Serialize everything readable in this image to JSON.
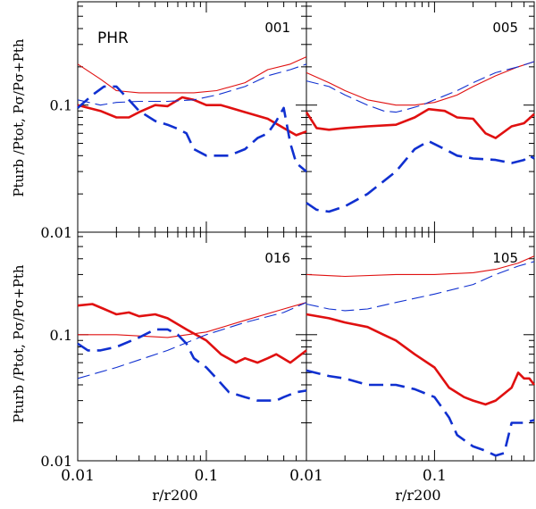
{
  "chart_data": {
    "type": "line",
    "x_scale": "log",
    "y_scale": "log",
    "xlim": [
      0.01,
      0.6
    ],
    "ylim": [
      0.01,
      0.65
    ],
    "x_tick_labels": [
      "0.01",
      "0.1"
    ],
    "y_tick_labels": [
      "0.01",
      "0.1"
    ],
    "xlabel": "r/r200",
    "ylabel": "Pturb /Ptot, Pσ/Pσ+Pth",
    "colors": {
      "red": "#e01010",
      "blue": "#1030d0"
    },
    "panels": [
      {
        "id": "001",
        "tag": "PHR",
        "series": [
          {
            "name": "red-thin",
            "style": "thin-solid",
            "color": "red",
            "x": [
              0.01,
              0.015,
              0.02,
              0.03,
              0.05,
              0.08,
              0.12,
              0.2,
              0.3,
              0.45,
              0.6
            ],
            "y": [
              0.21,
              0.16,
              0.13,
              0.125,
              0.125,
              0.125,
              0.13,
              0.15,
              0.19,
              0.21,
              0.24
            ]
          },
          {
            "name": "red-thick",
            "style": "thick-solid",
            "color": "red",
            "x": [
              0.01,
              0.015,
              0.02,
              0.025,
              0.03,
              0.04,
              0.05,
              0.065,
              0.08,
              0.1,
              0.13,
              0.2,
              0.3,
              0.4,
              0.5,
              0.6
            ],
            "y": [
              0.1,
              0.09,
              0.08,
              0.08,
              0.088,
              0.1,
              0.098,
              0.115,
              0.11,
              0.1,
              0.1,
              0.088,
              0.078,
              0.066,
              0.058,
              0.062
            ]
          },
          {
            "name": "blue-thin",
            "style": "thin-dash",
            "color": "blue",
            "x": [
              0.01,
              0.015,
              0.02,
              0.03,
              0.05,
              0.08,
              0.12,
              0.2,
              0.3,
              0.45,
              0.6
            ],
            "y": [
              0.11,
              0.1,
              0.105,
              0.107,
              0.107,
              0.11,
              0.12,
              0.14,
              0.17,
              0.19,
              0.21
            ]
          },
          {
            "name": "blue-thick",
            "style": "thick-dash",
            "color": "blue",
            "x": [
              0.01,
              0.013,
              0.016,
              0.02,
              0.025,
              0.03,
              0.04,
              0.05,
              0.06,
              0.07,
              0.08,
              0.1,
              0.12,
              0.15,
              0.2,
              0.25,
              0.3,
              0.35,
              0.4,
              0.45,
              0.5,
              0.6
            ],
            "y": [
              0.095,
              0.12,
              0.14,
              0.14,
              0.11,
              0.09,
              0.075,
              0.07,
              0.065,
              0.06,
              0.045,
              0.04,
              0.04,
              0.04,
              0.045,
              0.055,
              0.06,
              0.075,
              0.095,
              0.05,
              0.035,
              0.03
            ]
          }
        ]
      },
      {
        "id": "005",
        "tag": "",
        "series": [
          {
            "name": "red-thin",
            "style": "thin-solid",
            "color": "red",
            "x": [
              0.01,
              0.015,
              0.02,
              0.03,
              0.05,
              0.07,
              0.1,
              0.15,
              0.2,
              0.3,
              0.45,
              0.6
            ],
            "y": [
              0.18,
              0.15,
              0.13,
              0.11,
              0.1,
              0.1,
              0.105,
              0.12,
              0.14,
              0.17,
              0.2,
              0.22
            ]
          },
          {
            "name": "red-thick",
            "style": "thick-solid",
            "color": "red",
            "x": [
              0.01,
              0.012,
              0.015,
              0.02,
              0.03,
              0.05,
              0.07,
              0.09,
              0.12,
              0.15,
              0.2,
              0.25,
              0.3,
              0.4,
              0.5,
              0.6
            ],
            "y": [
              0.088,
              0.066,
              0.064,
              0.066,
              0.068,
              0.07,
              0.08,
              0.093,
              0.09,
              0.08,
              0.078,
              0.06,
              0.055,
              0.068,
              0.072,
              0.085
            ]
          },
          {
            "name": "blue-thin",
            "style": "thin-dash",
            "color": "blue",
            "x": [
              0.01,
              0.015,
              0.02,
              0.03,
              0.04,
              0.05,
              0.06,
              0.08,
              0.1,
              0.15,
              0.2,
              0.3,
              0.45,
              0.6
            ],
            "y": [
              0.155,
              0.14,
              0.12,
              0.1,
              0.09,
              0.088,
              0.092,
              0.1,
              0.11,
              0.13,
              0.15,
              0.18,
              0.2,
              0.22
            ]
          },
          {
            "name": "blue-thick",
            "style": "thick-dash",
            "color": "blue",
            "x": [
              0.01,
              0.012,
              0.015,
              0.02,
              0.03,
              0.05,
              0.07,
              0.09,
              0.12,
              0.15,
              0.2,
              0.3,
              0.4,
              0.5,
              0.55,
              0.6
            ],
            "y": [
              0.017,
              0.015,
              0.0145,
              0.016,
              0.02,
              0.03,
              0.045,
              0.052,
              0.045,
              0.04,
              0.038,
              0.037,
              0.035,
              0.037,
              0.04,
              0.038
            ]
          }
        ]
      },
      {
        "id": "016",
        "tag": "",
        "series": [
          {
            "name": "red-thin",
            "style": "thin-solid",
            "color": "red",
            "x": [
              0.01,
              0.02,
              0.05,
              0.1,
              0.2,
              0.4,
              0.6
            ],
            "y": [
              0.1,
              0.1,
              0.095,
              0.105,
              0.13,
              0.16,
              0.18
            ]
          },
          {
            "name": "red-thick",
            "style": "thick-solid",
            "color": "red",
            "x": [
              0.01,
              0.013,
              0.016,
              0.02,
              0.025,
              0.03,
              0.04,
              0.05,
              0.07,
              0.1,
              0.13,
              0.17,
              0.2,
              0.25,
              0.3,
              0.35,
              0.45,
              0.6
            ],
            "y": [
              0.17,
              0.175,
              0.16,
              0.145,
              0.15,
              0.14,
              0.145,
              0.135,
              0.11,
              0.09,
              0.07,
              0.06,
              0.065,
              0.06,
              0.065,
              0.07,
              0.06,
              0.075
            ]
          },
          {
            "name": "blue-thin",
            "style": "thin-dash",
            "color": "blue",
            "x": [
              0.01,
              0.02,
              0.05,
              0.1,
              0.2,
              0.4,
              0.6
            ],
            "y": [
              0.045,
              0.055,
              0.075,
              0.1,
              0.125,
              0.15,
              0.18
            ]
          },
          {
            "name": "blue-thick",
            "style": "thick-dash",
            "color": "blue",
            "x": [
              0.01,
              0.012,
              0.015,
              0.02,
              0.03,
              0.04,
              0.05,
              0.06,
              0.07,
              0.08,
              0.1,
              0.12,
              0.15,
              0.2,
              0.25,
              0.3,
              0.35,
              0.4,
              0.5,
              0.6
            ],
            "y": [
              0.085,
              0.075,
              0.075,
              0.08,
              0.095,
              0.11,
              0.11,
              0.1,
              0.085,
              0.065,
              0.055,
              0.045,
              0.035,
              0.032,
              0.03,
              0.03,
              0.03,
              0.032,
              0.035,
              0.036
            ]
          }
        ]
      },
      {
        "id": "105",
        "tag": "",
        "series": [
          {
            "name": "red-thin",
            "style": "thin-solid",
            "color": "red",
            "x": [
              0.01,
              0.02,
              0.05,
              0.1,
              0.2,
              0.3,
              0.45,
              0.6
            ],
            "y": [
              0.3,
              0.29,
              0.3,
              0.3,
              0.31,
              0.33,
              0.37,
              0.42
            ]
          },
          {
            "name": "red-thick",
            "style": "thick-solid",
            "color": "red",
            "x": [
              0.01,
              0.015,
              0.02,
              0.03,
              0.04,
              0.05,
              0.07,
              0.1,
              0.13,
              0.17,
              0.2,
              0.25,
              0.3,
              0.4,
              0.45,
              0.5,
              0.55,
              0.6
            ],
            "y": [
              0.145,
              0.135,
              0.125,
              0.115,
              0.1,
              0.09,
              0.07,
              0.055,
              0.038,
              0.032,
              0.03,
              0.028,
              0.03,
              0.038,
              0.05,
              0.045,
              0.045,
              0.04
            ]
          },
          {
            "name": "blue-thin",
            "style": "thin-dash",
            "color": "blue",
            "x": [
              0.01,
              0.015,
              0.02,
              0.03,
              0.05,
              0.1,
              0.2,
              0.3,
              0.45,
              0.6
            ],
            "y": [
              0.175,
              0.16,
              0.155,
              0.16,
              0.18,
              0.21,
              0.25,
              0.3,
              0.35,
              0.38
            ]
          },
          {
            "name": "blue-thick",
            "style": "thick-dash",
            "color": "blue",
            "x": [
              0.01,
              0.015,
              0.02,
              0.03,
              0.05,
              0.07,
              0.1,
              0.13,
              0.15,
              0.2,
              0.25,
              0.3,
              0.35,
              0.4,
              0.5,
              0.6
            ],
            "y": [
              0.052,
              0.047,
              0.045,
              0.04,
              0.04,
              0.037,
              0.032,
              0.022,
              0.016,
              0.013,
              0.012,
              0.011,
              0.0115,
              0.02,
              0.02,
              0.021
            ]
          }
        ]
      }
    ]
  }
}
